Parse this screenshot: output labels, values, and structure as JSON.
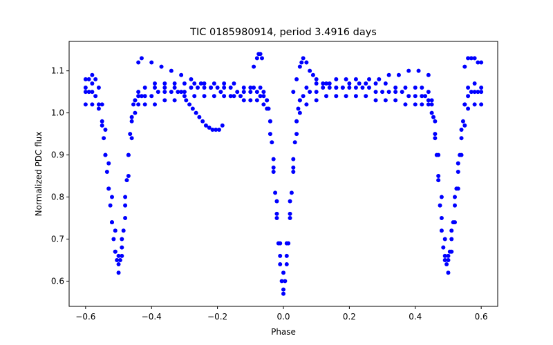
{
  "chart_data": {
    "type": "scatter",
    "title": "TIC 0185980914, period 3.4916 days",
    "xlabel": "Phase",
    "ylabel": "Normalized PDC flux",
    "xlim": [
      -0.65,
      0.65
    ],
    "ylim": [
      0.54,
      1.17
    ],
    "xticks": [
      -0.6,
      -0.4,
      -0.2,
      0.0,
      0.2,
      0.4,
      0.6
    ],
    "xtick_labels": [
      "−0.6",
      "−0.4",
      "−0.2",
      "0.0",
      "0.2",
      "0.4",
      "0.6"
    ],
    "yticks": [
      0.6,
      0.7,
      0.8,
      0.9,
      1.0,
      1.1
    ],
    "ytick_labels": [
      "0.6",
      "0.7",
      "0.8",
      "0.9",
      "1.0",
      "1.1"
    ],
    "grid": false,
    "marker_color": "#0000ff",
    "series": [
      {
        "x": [
          -0.6,
          -0.59,
          -0.58,
          -0.57,
          -0.56,
          -0.55,
          -0.545,
          -0.54,
          -0.535,
          -0.53,
          -0.525,
          -0.52,
          -0.515,
          -0.51,
          -0.505,
          -0.5,
          -0.495,
          -0.49,
          -0.485,
          -0.48,
          -0.475,
          -0.47,
          -0.465,
          -0.46,
          -0.455,
          -0.45,
          -0.44,
          -0.43,
          -0.42,
          -0.4,
          -0.38,
          -0.36,
          -0.34,
          -0.32,
          -0.3,
          -0.28,
          -0.26,
          -0.24,
          -0.22,
          -0.2,
          -0.18,
          -0.16,
          -0.14,
          -0.12,
          -0.1,
          -0.08,
          -0.07,
          -0.06,
          -0.05,
          -0.045,
          -0.04,
          -0.035,
          -0.03,
          -0.025,
          -0.02,
          -0.015,
          -0.01,
          -0.005,
          0.0,
          0.005,
          0.01,
          0.015,
          0.02,
          0.025,
          0.03,
          0.035,
          0.04,
          0.045,
          0.05,
          0.06,
          0.08,
          0.1,
          0.12,
          0.14,
          0.16,
          0.18,
          0.2,
          0.22,
          0.24,
          0.26,
          0.28,
          0.3,
          0.32,
          0.34,
          0.36,
          0.38,
          0.4,
          0.42,
          0.43,
          0.44,
          0.45,
          0.455,
          0.46,
          0.465,
          0.47,
          0.475,
          0.48,
          0.485,
          0.49,
          0.495,
          0.5,
          0.505,
          0.51,
          0.515,
          0.52,
          0.525,
          0.53,
          0.535,
          0.54,
          0.545,
          0.55,
          0.56,
          0.57,
          0.58,
          0.59,
          0.6
        ],
        "y": [
          1.05,
          1.05,
          1.05,
          1.04,
          1.02,
          0.98,
          0.94,
          0.9,
          0.86,
          0.82,
          0.78,
          0.74,
          0.7,
          0.67,
          0.65,
          0.64,
          0.65,
          0.68,
          0.72,
          0.78,
          0.84,
          0.9,
          0.95,
          0.99,
          1.02,
          1.03,
          1.04,
          1.04,
          1.04,
          1.04,
          1.05,
          1.05,
          1.05,
          1.05,
          1.05,
          1.06,
          1.06,
          1.06,
          1.06,
          1.06,
          1.06,
          1.06,
          1.05,
          1.05,
          1.05,
          1.05,
          1.04,
          1.04,
          1.03,
          1.01,
          0.98,
          0.93,
          0.87,
          0.81,
          0.75,
          0.69,
          0.64,
          0.6,
          0.58,
          0.6,
          0.64,
          0.69,
          0.75,
          0.81,
          0.87,
          0.93,
          0.98,
          1.01,
          1.03,
          1.04,
          1.05,
          1.05,
          1.06,
          1.06,
          1.06,
          1.06,
          1.06,
          1.06,
          1.06,
          1.06,
          1.05,
          1.05,
          1.05,
          1.05,
          1.05,
          1.04,
          1.04,
          1.04,
          1.04,
          1.03,
          1.02,
          0.99,
          0.95,
          0.9,
          0.84,
          0.78,
          0.72,
          0.68,
          0.65,
          0.64,
          0.65,
          0.67,
          0.7,
          0.74,
          0.78,
          0.82,
          0.86,
          0.9,
          0.94,
          0.98,
          1.02,
          1.04,
          1.05,
          1.05,
          1.05,
          1.05
        ]
      },
      {
        "x": [
          -0.6,
          -0.58,
          -0.56,
          -0.55,
          -0.54,
          -0.53,
          -0.52,
          -0.51,
          -0.5,
          -0.49,
          -0.48,
          -0.47,
          -0.46,
          -0.45,
          -0.44,
          -0.42,
          -0.39,
          -0.36,
          -0.33,
          -0.3,
          -0.27,
          -0.24,
          -0.21,
          -0.18,
          -0.15,
          -0.12,
          -0.1,
          -0.08,
          -0.06,
          -0.05,
          -0.04,
          -0.03,
          -0.02,
          -0.01,
          0.0,
          0.01,
          0.02,
          0.03,
          0.04,
          0.05,
          0.07,
          0.1,
          0.13,
          0.16,
          0.19,
          0.22,
          0.25,
          0.28,
          0.31,
          0.34,
          0.37,
          0.4,
          0.42,
          0.44,
          0.45,
          0.46,
          0.47,
          0.48,
          0.49,
          0.5,
          0.51,
          0.52,
          0.53,
          0.54,
          0.55,
          0.56,
          0.58,
          0.6
        ],
        "y": [
          1.02,
          1.02,
          1.01,
          0.97,
          0.9,
          0.82,
          0.74,
          0.67,
          0.62,
          0.66,
          0.75,
          0.85,
          0.94,
          1.0,
          1.02,
          1.02,
          1.02,
          1.03,
          1.03,
          1.04,
          1.04,
          1.04,
          1.04,
          1.04,
          1.04,
          1.03,
          1.03,
          1.03,
          1.02,
          1.01,
          0.95,
          0.86,
          0.76,
          0.66,
          0.57,
          0.66,
          0.76,
          0.86,
          0.95,
          1.0,
          1.02,
          1.03,
          1.04,
          1.04,
          1.04,
          1.04,
          1.04,
          1.03,
          1.03,
          1.03,
          1.02,
          1.02,
          1.02,
          1.02,
          1.0,
          0.94,
          0.85,
          0.75,
          0.66,
          0.62,
          0.67,
          0.74,
          0.82,
          0.9,
          0.97,
          1.01,
          1.02,
          1.02
        ]
      },
      {
        "x": [
          -0.6,
          -0.58,
          -0.56,
          -0.55,
          -0.54,
          -0.53,
          -0.52,
          -0.51,
          -0.5,
          -0.49,
          -0.48,
          -0.47,
          -0.46,
          -0.45,
          -0.44,
          -0.42,
          -0.39,
          -0.36,
          -0.33,
          -0.3,
          -0.27,
          -0.24,
          -0.21,
          -0.18,
          -0.15,
          -0.12,
          -0.09,
          -0.07,
          -0.06,
          -0.05,
          -0.04,
          -0.03,
          -0.02,
          -0.01,
          0.0,
          0.01,
          0.02,
          0.03,
          0.04,
          0.05,
          0.07,
          0.1,
          0.13,
          0.16,
          0.19,
          0.22,
          0.25,
          0.28,
          0.31,
          0.34,
          0.37,
          0.4,
          0.42,
          0.44,
          0.45,
          0.46,
          0.47,
          0.48,
          0.49,
          0.5,
          0.51,
          0.52,
          0.53,
          0.54,
          0.55,
          0.56,
          0.58,
          0.6
        ],
        "y": [
          1.06,
          1.07,
          1.06,
          1.02,
          0.96,
          0.88,
          0.8,
          0.72,
          0.66,
          0.7,
          0.8,
          0.9,
          0.98,
          1.03,
          1.05,
          1.06,
          1.06,
          1.06,
          1.07,
          1.07,
          1.07,
          1.07,
          1.07,
          1.07,
          1.07,
          1.06,
          1.06,
          1.06,
          1.05,
          1.03,
          0.98,
          0.89,
          0.79,
          0.69,
          0.62,
          0.69,
          0.79,
          0.89,
          0.98,
          1.03,
          1.06,
          1.07,
          1.07,
          1.08,
          1.08,
          1.08,
          1.07,
          1.07,
          1.07,
          1.06,
          1.06,
          1.06,
          1.06,
          1.05,
          1.03,
          0.98,
          0.9,
          0.8,
          0.7,
          0.66,
          0.72,
          0.8,
          0.88,
          0.96,
          1.02,
          1.06,
          1.07,
          1.06
        ]
      },
      {
        "x": [
          -0.6,
          -0.59,
          -0.58,
          -0.57,
          -0.44,
          -0.43,
          -0.4,
          -0.37,
          -0.34,
          -0.31,
          -0.28,
          -0.25,
          -0.22,
          -0.19,
          -0.16,
          -0.13,
          -0.1,
          -0.09,
          -0.08,
          -0.075,
          -0.07,
          -0.065
        ],
        "y": [
          1.08,
          1.08,
          1.09,
          1.08,
          1.12,
          1.13,
          1.12,
          1.11,
          1.1,
          1.09,
          1.08,
          1.07,
          1.06,
          1.05,
          1.04,
          1.04,
          1.06,
          1.11,
          1.13,
          1.14,
          1.14,
          1.13
        ]
      },
      {
        "x": [
          0.03,
          0.04,
          0.05,
          0.055,
          0.06,
          0.07,
          0.08,
          0.09,
          0.1,
          0.12,
          0.14,
          0.16,
          0.18,
          0.2,
          0.23,
          0.26,
          0.29,
          0.32,
          0.35,
          0.38,
          0.41,
          0.44,
          0.55,
          0.56,
          0.57,
          0.58,
          0.59,
          0.6
        ],
        "y": [
          1.05,
          1.08,
          1.11,
          1.12,
          1.13,
          1.12,
          1.1,
          1.09,
          1.08,
          1.07,
          1.07,
          1.06,
          1.06,
          1.07,
          1.07,
          1.08,
          1.08,
          1.09,
          1.09,
          1.1,
          1.1,
          1.09,
          1.11,
          1.13,
          1.13,
          1.13,
          1.12,
          1.12
        ]
      },
      {
        "x": [
          -0.39,
          -0.36,
          -0.33,
          -0.31,
          -0.295,
          -0.285,
          -0.275,
          -0.265,
          -0.255,
          -0.245,
          -0.235,
          -0.225,
          -0.215,
          -0.205,
          -0.195,
          -0.185
        ],
        "y": [
          1.07,
          1.07,
          1.06,
          1.05,
          1.03,
          1.02,
          1.01,
          1.0,
          0.99,
          0.98,
          0.97,
          0.965,
          0.96,
          0.96,
          0.96,
          0.97
        ]
      }
    ]
  }
}
